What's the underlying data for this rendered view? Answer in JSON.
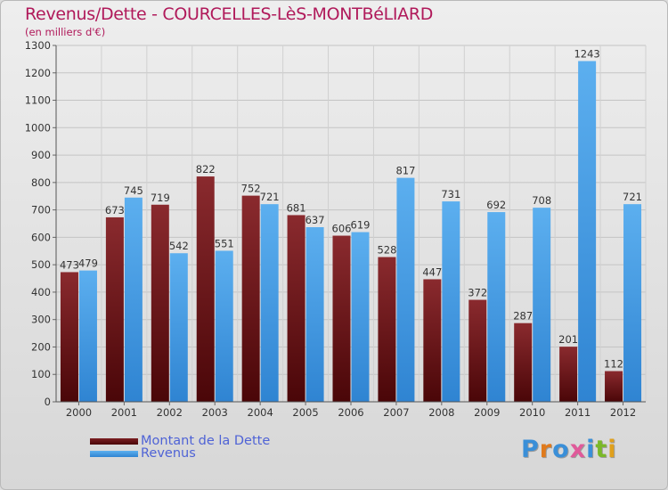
{
  "title": "Revenus/Dette - COURCELLES-LèS-MONTBéLIARD",
  "subtitle": "(en milliers d'€)",
  "legend": {
    "dette_label": "Montant de la Dette",
    "revenus_label": "Revenus"
  },
  "logo": {
    "text": "Proxiti"
  },
  "colors": {
    "dette": "#7a1e22",
    "dette_dark": "#4a0608",
    "revenus": "#56a8ea",
    "revenus_dark": "#2f84d2",
    "title": "#b0195a",
    "legend_text": "#4f63d6"
  },
  "chart_data": {
    "type": "bar",
    "title": "Revenus/Dette - COURCELLES-LèS-MONTBéLIARD",
    "subtitle": "(en milliers d'€)",
    "categories": [
      "2000",
      "2001",
      "2002",
      "2003",
      "2004",
      "2005",
      "2006",
      "2007",
      "2008",
      "2009",
      "2010",
      "2011",
      "2012"
    ],
    "series": [
      {
        "name": "Montant de la Dette",
        "values": [
          473,
          673,
          719,
          822,
          752,
          681,
          606,
          528,
          447,
          372,
          287,
          201,
          112
        ]
      },
      {
        "name": "Revenus",
        "values": [
          479,
          745,
          542,
          551,
          721,
          637,
          619,
          817,
          731,
          692,
          708,
          1243,
          721
        ]
      }
    ],
    "ylim": [
      0,
      1300
    ],
    "yticks": [
      0,
      100,
      200,
      300,
      400,
      500,
      600,
      700,
      800,
      900,
      1000,
      1100,
      1200,
      1300
    ],
    "grid": true,
    "legend_position": "bottom-left"
  }
}
